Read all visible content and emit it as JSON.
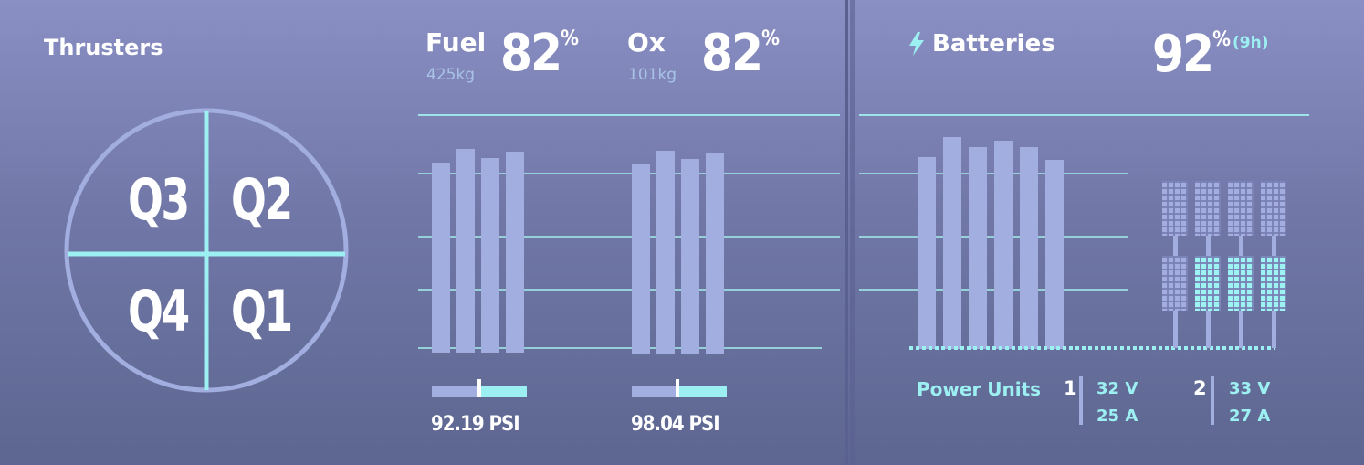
{
  "thrusters": {
    "title": "Thrusters",
    "quadrants": {
      "q1": "Q1",
      "q2": "Q2",
      "q3": "Q3",
      "q4": "Q4"
    }
  },
  "fuel": {
    "label": "Fuel",
    "mass": "425kg",
    "percent": "82",
    "pct_symbol": "%",
    "pressure": "92.19 PSI",
    "pressure_fraction": 0.5
  },
  "ox": {
    "label": "Ox",
    "mass": "101kg",
    "percent": "82",
    "pct_symbol": "%",
    "pressure": "98.04 PSI",
    "pressure_fraction": 0.5
  },
  "batteries": {
    "title": "Batteries",
    "icon": "lightning-icon",
    "percent": "92",
    "pct_symbol": "%",
    "time": "(9h)"
  },
  "power_units": {
    "label": "Power Units",
    "units": [
      {
        "id": "1",
        "voltage": "32 V",
        "current": "25 A"
      },
      {
        "id": "2",
        "voltage": "33 V",
        "current": "27 A"
      }
    ]
  },
  "colors": {
    "accent": "#9df0f2",
    "bar": "#a2aedf",
    "text": "#ffffff",
    "subtext": "#a9c3e6"
  }
}
